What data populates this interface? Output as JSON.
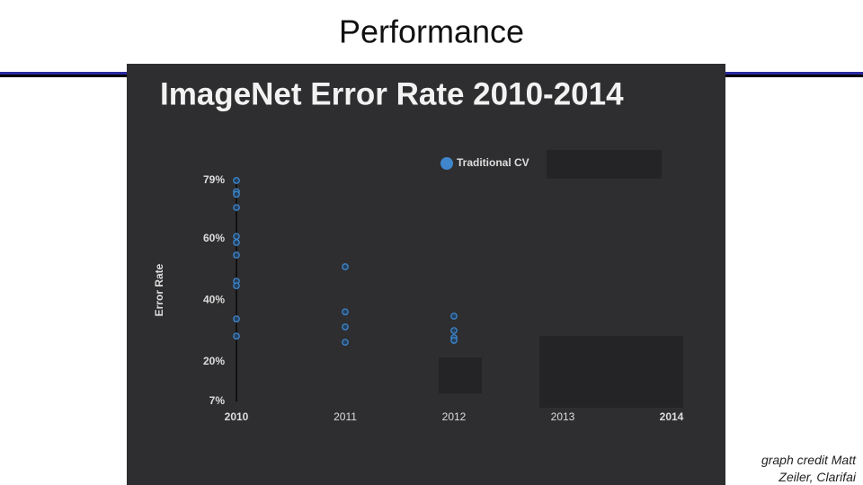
{
  "slide_title": "Performance",
  "credit": "graph credit Matt Zeiler, Clarifai",
  "chart_data": {
    "type": "scatter",
    "title": "ImageNet Error Rate 2010-2014",
    "y_label": "Error Rate",
    "xlim": [
      2010,
      2014
    ],
    "xticks": [
      2010,
      2011,
      2012,
      2013,
      2014
    ],
    "ylim": [
      7,
      79
    ],
    "yticks": [
      {
        "value": 7,
        "label": "7%"
      },
      {
        "value": 20,
        "label": "20%"
      },
      {
        "value": 40,
        "label": "40%"
      },
      {
        "value": 60,
        "label": "60%"
      },
      {
        "value": 79,
        "label": "79%"
      }
    ],
    "legend": "top",
    "series": [
      {
        "name": "Traditional CV",
        "color": "#3f86cc",
        "x": [
          2010,
          2010,
          2010,
          2010,
          2010,
          2010,
          2010,
          2010,
          2010,
          2010,
          2010,
          2011,
          2011,
          2011,
          2011,
          2012,
          2012,
          2012,
          2012
        ],
        "values": [
          79,
          75.4,
          74.5,
          70.2,
          60.8,
          58.8,
          54.7,
          46.2,
          44.7,
          33.9,
          28.3,
          50.9,
          36.2,
          31.3,
          26.3,
          34.8,
          30.1,
          27.8,
          26.9
        ]
      }
    ]
  }
}
